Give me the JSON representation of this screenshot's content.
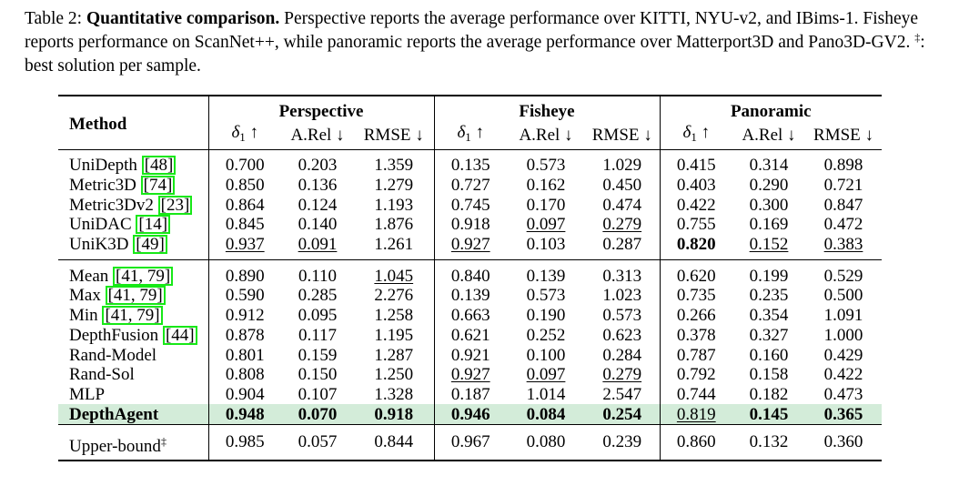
{
  "caption": {
    "label": "Table 2:",
    "bold_title": "Quantitative comparison.",
    "text1": "Perspective reports the average performance over KITTI, NYU-v2, and IBims-1. Fisheye reports performance on ScanNet++, while panoramic reports the average performance over Matterport3D and Pano3D-GV2.",
    "dagger": "‡",
    "text2": ": best solution per sample."
  },
  "table": {
    "method_header": "Method",
    "groups": [
      "Perspective",
      "Fisheye",
      "Panoramic"
    ],
    "metrics": [
      "δ1 ↑",
      "A.Rel ↓",
      "RMSE ↓"
    ],
    "block1": [
      {
        "name": "UniDepth",
        "cite": "48",
        "vals": [
          "0.700",
          "0.203",
          "1.359",
          "0.135",
          "0.573",
          "1.029",
          "0.415",
          "0.314",
          "0.898"
        ]
      },
      {
        "name": "Metric3D",
        "cite": "74",
        "vals": [
          "0.850",
          "0.136",
          "1.279",
          "0.727",
          "0.162",
          "0.450",
          "0.403",
          "0.290",
          "0.721"
        ]
      },
      {
        "name": "Metric3Dv2",
        "cite": "23",
        "vals": [
          "0.864",
          "0.124",
          "1.193",
          "0.745",
          "0.170",
          "0.474",
          "0.422",
          "0.300",
          "0.847"
        ]
      },
      {
        "name": "UniDAC",
        "cite": "14",
        "vals": [
          "0.845",
          "0.140",
          "1.876",
          "0.918",
          "0.097",
          "0.279",
          "0.755",
          "0.169",
          "0.472"
        ]
      },
      {
        "name": "UniK3D",
        "cite": "49",
        "vals": [
          "0.937",
          "0.091",
          "1.261",
          "0.927",
          "0.103",
          "0.287",
          "0.820",
          "0.152",
          "0.383"
        ]
      }
    ],
    "block2": [
      {
        "name": "Mean",
        "cite": "41, 79",
        "vals": [
          "0.890",
          "0.110",
          "1.045",
          "0.840",
          "0.139",
          "0.313",
          "0.620",
          "0.199",
          "0.529"
        ]
      },
      {
        "name": "Max",
        "cite": "41, 79",
        "vals": [
          "0.590",
          "0.285",
          "2.276",
          "0.139",
          "0.573",
          "1.023",
          "0.735",
          "0.235",
          "0.500"
        ]
      },
      {
        "name": "Min",
        "cite": "41, 79",
        "vals": [
          "0.912",
          "0.095",
          "1.258",
          "0.663",
          "0.190",
          "0.573",
          "0.266",
          "0.354",
          "1.091"
        ]
      },
      {
        "name": "DepthFusion",
        "cite": "44",
        "vals": [
          "0.878",
          "0.117",
          "1.195",
          "0.621",
          "0.252",
          "0.623",
          "0.378",
          "0.327",
          "1.000"
        ]
      },
      {
        "name": "Rand-Model",
        "cite": "",
        "vals": [
          "0.801",
          "0.159",
          "1.287",
          "0.921",
          "0.100",
          "0.284",
          "0.787",
          "0.160",
          "0.429"
        ]
      },
      {
        "name": "Rand-Sol",
        "cite": "",
        "vals": [
          "0.808",
          "0.150",
          "1.250",
          "0.927",
          "0.097",
          "0.279",
          "0.792",
          "0.158",
          "0.422"
        ]
      },
      {
        "name": "MLP",
        "cite": "",
        "vals": [
          "0.904",
          "0.107",
          "1.328",
          "0.187",
          "1.014",
          "2.547",
          "0.744",
          "0.182",
          "0.473"
        ]
      },
      {
        "name": "DepthAgent",
        "cite": "",
        "vals": [
          "0.948",
          "0.070",
          "0.918",
          "0.946",
          "0.084",
          "0.254",
          "0.819",
          "0.145",
          "0.365"
        ]
      }
    ],
    "block3": [
      {
        "name": "Upper-bound",
        "dagger": "‡",
        "vals": [
          "0.985",
          "0.057",
          "0.844",
          "0.967",
          "0.080",
          "0.239",
          "0.860",
          "0.132",
          "0.360"
        ]
      }
    ],
    "highlight_color": "#d3ecd9",
    "cite_box_color": "#17e817"
  }
}
